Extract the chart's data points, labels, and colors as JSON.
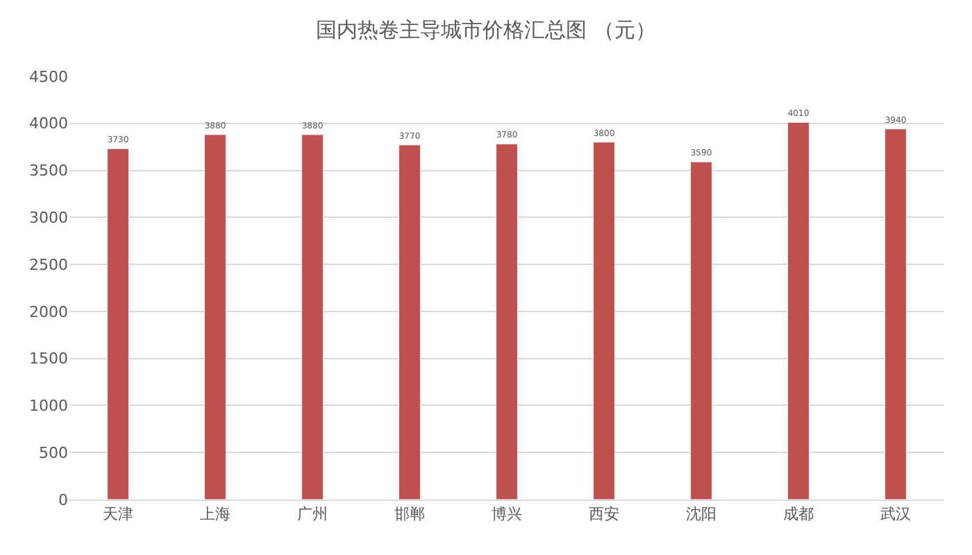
{
  "chart_data": {
    "type": "bar",
    "title": "国内热卷主导城市价格汇总图 （元）",
    "categories": [
      "天津",
      "上海",
      "广州",
      "邯郸",
      "博兴",
      "西安",
      "沈阳",
      "成都",
      "武汉"
    ],
    "values": [
      3730,
      3880,
      3880,
      3770,
      3780,
      3800,
      3590,
      4010,
      3940
    ],
    "color": "#c0504d",
    "ylim": [
      0,
      4500
    ],
    "yticks": [
      0,
      500,
      1000,
      1500,
      2000,
      2500,
      3000,
      3500,
      4000,
      4500
    ],
    "grid": "y",
    "data_labels": true
  }
}
